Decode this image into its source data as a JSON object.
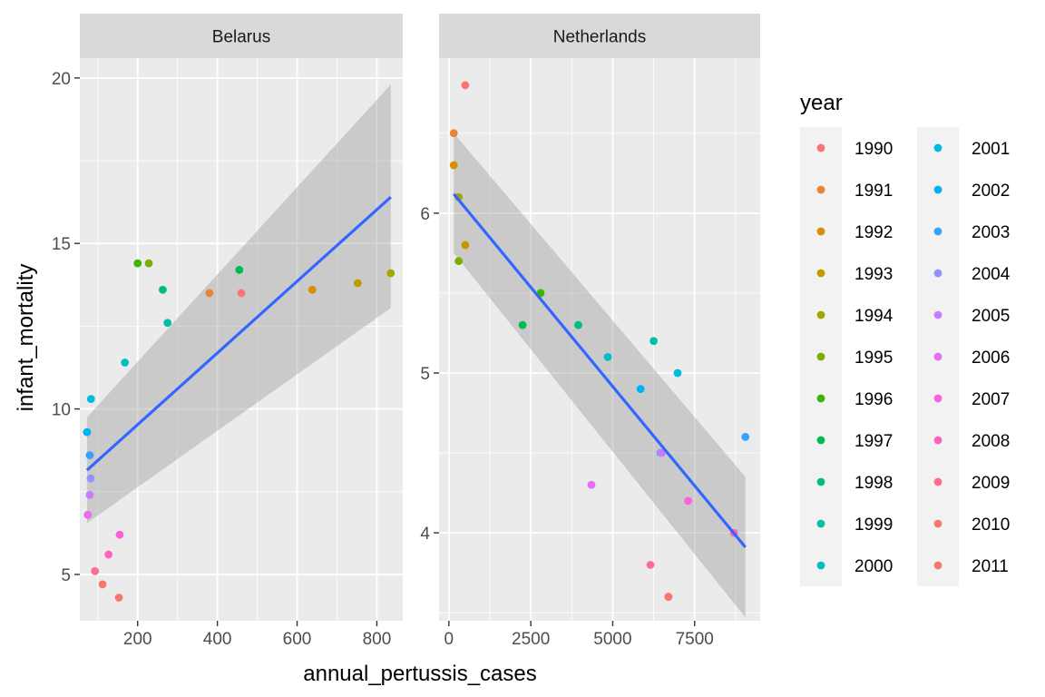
{
  "chart_data": {
    "type": "scatter",
    "xlabel": "annual_pertussis_cases",
    "ylabel": "infant_mortality",
    "legend_title": "year",
    "legend_position": "right",
    "grid": true,
    "years": [
      "1990",
      "1991",
      "1992",
      "1993",
      "1994",
      "1995",
      "1996",
      "1997",
      "1998",
      "1999",
      "2000",
      "2001",
      "2002",
      "2003",
      "2004",
      "2005",
      "2006",
      "2007",
      "2008",
      "2009",
      "2010",
      "2011"
    ],
    "year_colors": [
      "#F8766D",
      "#EA8331",
      "#D89000",
      "#C09B00",
      "#A3A500",
      "#7CAE00",
      "#39B600",
      "#00BB4E",
      "#00BF7D",
      "#00C1A3",
      "#00BFC4",
      "#00BAE0",
      "#00B0F6",
      "#35A2FF",
      "#9590FF",
      "#C77CFF",
      "#E76BF3",
      "#FA62DB",
      "#FF62BC",
      "#FF6C91",
      "#F8766D",
      "#F8766D"
    ],
    "smooth_color": "#3366FF",
    "ribbon_color": "#999999",
    "panels": [
      {
        "name": "Belarus",
        "xlim": [
          55,
          865
        ],
        "ylim": [
          3.6,
          20.6
        ],
        "xticks": [
          200,
          400,
          600,
          800
        ],
        "xtick_labels": [
          "200",
          "400",
          "600",
          "800"
        ],
        "yticks": [
          5,
          10,
          15,
          20
        ],
        "ytick_labels": [
          "5",
          "10",
          "15",
          "20"
        ],
        "points": [
          {
            "year": "1990",
            "x": 460,
            "y": 13.5
          },
          {
            "year": "1991",
            "x": 380,
            "y": 13.5
          },
          {
            "year": "1992",
            "x": 638,
            "y": 13.6
          },
          {
            "year": "1993",
            "x": 752,
            "y": 13.8
          },
          {
            "year": "1994",
            "x": 835,
            "y": 14.1
          },
          {
            "year": "1995",
            "x": 228,
            "y": 14.4
          },
          {
            "year": "1996",
            "x": 200,
            "y": 14.4
          },
          {
            "year": "1997",
            "x": 455,
            "y": 14.2
          },
          {
            "year": "1998",
            "x": 263,
            "y": 13.6
          },
          {
            "year": "1999",
            "x": 275,
            "y": 12.6
          },
          {
            "year": "2000",
            "x": 168,
            "y": 11.4
          },
          {
            "year": "2001",
            "x": 83,
            "y": 10.3
          },
          {
            "year": "2002",
            "x": 73,
            "y": 9.3
          },
          {
            "year": "2003",
            "x": 80,
            "y": 8.6
          },
          {
            "year": "2004",
            "x": 82,
            "y": 7.9
          },
          {
            "year": "2005",
            "x": 80,
            "y": 7.4
          },
          {
            "year": "2006",
            "x": 75,
            "y": 6.8
          },
          {
            "year": "2007",
            "x": 155,
            "y": 6.2
          },
          {
            "year": "2008",
            "x": 127,
            "y": 5.6
          },
          {
            "year": "2009",
            "x": 93,
            "y": 5.1
          },
          {
            "year": "2010",
            "x": 112,
            "y": 4.7
          },
          {
            "year": "2011",
            "x": 153,
            "y": 4.3
          }
        ],
        "smooth": {
          "x": [
            73,
            835
          ],
          "y": [
            8.15,
            16.4
          ],
          "band_lower": [
            6.55,
            13.05
          ],
          "band_upper": [
            9.75,
            19.8
          ]
        }
      },
      {
        "name": "Netherlands",
        "xlim": [
          -300,
          9500
        ],
        "ylim": [
          3.45,
          6.97
        ],
        "xticks": [
          0,
          2500,
          5000,
          7500
        ],
        "xtick_labels": [
          "0",
          "2500",
          "5000",
          "7500"
        ],
        "yticks": [
          4,
          5,
          6
        ],
        "ytick_labels": [
          "4",
          "5",
          "6"
        ],
        "points": [
          {
            "year": "1990",
            "x": 500,
            "y": 6.8
          },
          {
            "year": "1991",
            "x": 150,
            "y": 6.5
          },
          {
            "year": "1992",
            "x": 150,
            "y": 6.3
          },
          {
            "year": "1993",
            "x": 500,
            "y": 5.8
          },
          {
            "year": "1994",
            "x": 300,
            "y": 6.1
          },
          {
            "year": "1995",
            "x": 300,
            "y": 5.7
          },
          {
            "year": "1996",
            "x": 2800,
            "y": 5.5
          },
          {
            "year": "1997",
            "x": 2250,
            "y": 5.3
          },
          {
            "year": "1998",
            "x": 3950,
            "y": 5.3
          },
          {
            "year": "1999",
            "x": 6250,
            "y": 5.2
          },
          {
            "year": "2000",
            "x": 4850,
            "y": 5.1
          },
          {
            "year": "2001",
            "x": 6980,
            "y": 5.0
          },
          {
            "year": "2002",
            "x": 5850,
            "y": 4.9
          },
          {
            "year": "2003",
            "x": 9050,
            "y": 4.6
          },
          {
            "year": "2004",
            "x": 6450,
            "y": 4.5
          },
          {
            "year": "2005",
            "x": 6500,
            "y": 4.5
          },
          {
            "year": "2006",
            "x": 4350,
            "y": 4.3
          },
          {
            "year": "2007",
            "x": 7300,
            "y": 4.2
          },
          {
            "year": "2008",
            "x": 8700,
            "y": 4.0
          },
          {
            "year": "2009",
            "x": 6150,
            "y": 3.8
          },
          {
            "year": "2010",
            "x": 6700,
            "y": 3.6
          },
          {
            "year": "2011",
            "x": 6700,
            "y": 3.6
          }
        ],
        "smooth": {
          "x": [
            150,
            9050
          ],
          "y": [
            6.12,
            3.91
          ],
          "band_lower": [
            5.75,
            3.47
          ],
          "band_upper": [
            6.5,
            4.35
          ]
        }
      }
    ]
  }
}
